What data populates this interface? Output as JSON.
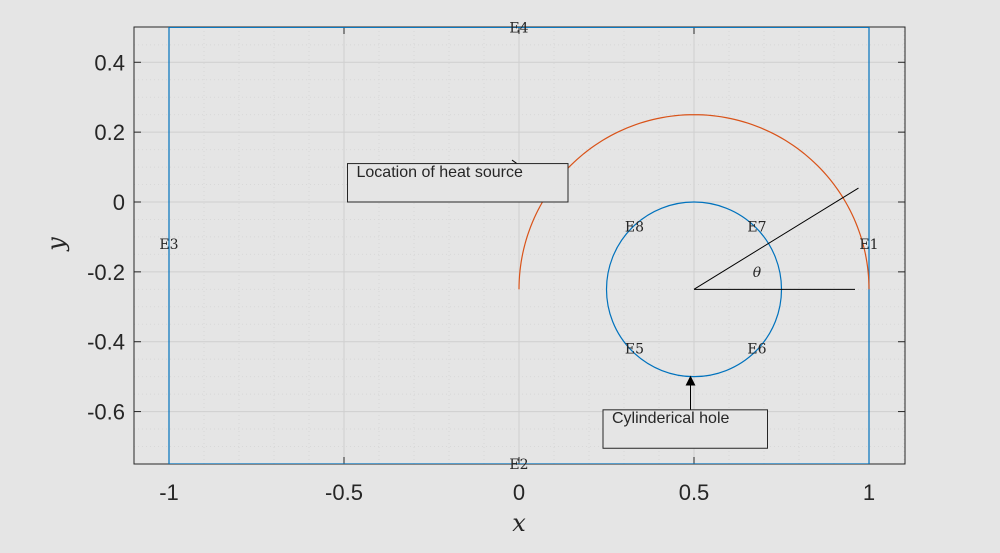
{
  "chart_data": {
    "type": "line",
    "xlabel": "x",
    "ylabel": "y",
    "xlim": [
      -1.1,
      1.1
    ],
    "ylim": [
      -0.75,
      0.5
    ],
    "xticks": [
      -1,
      -0.5,
      0,
      0.5,
      1
    ],
    "xtick_labels": [
      "-1",
      "-0.5",
      "0",
      "0.5",
      "1"
    ],
    "yticks": [
      0.4,
      0.2,
      0,
      -0.2,
      -0.4,
      -0.6
    ],
    "ytick_labels": [
      "0.4",
      "0.2",
      "0",
      "-0.2",
      "-0.4",
      "-0.6"
    ],
    "grid": true,
    "colors": {
      "domain": "#0072BD",
      "source": "#D95319",
      "annotation": "#000000",
      "axes_bg": "#e5e5e5"
    },
    "domain_rectangle": {
      "x": [
        -1,
        1
      ],
      "y": [
        -0.75,
        0.5
      ]
    },
    "hole": {
      "center": [
        0.5,
        -0.25
      ],
      "radius": 0.25
    },
    "heat_source_arc": {
      "center": [
        0.5,
        -0.25
      ],
      "radius": 0.5,
      "theta_start_deg": 0,
      "theta_end_deg": 180
    },
    "theta_lines": [
      {
        "from": [
          0.5,
          -0.25
        ],
        "to": [
          0.96,
          -0.25
        ]
      },
      {
        "from": [
          0.5,
          -0.25
        ],
        "to": [
          0.97,
          0.04
        ]
      }
    ],
    "edge_labels": [
      {
        "text": "E1",
        "x": 1.0,
        "y": -0.12
      },
      {
        "text": "E2",
        "x": 0.0,
        "y": -0.75
      },
      {
        "text": "E3",
        "x": -1.0,
        "y": -0.12
      },
      {
        "text": "E4",
        "x": 0.0,
        "y": 0.5
      },
      {
        "text": "E5",
        "x": 0.33,
        "y": -0.42
      },
      {
        "text": "E6",
        "x": 0.68,
        "y": -0.42
      },
      {
        "text": "E7",
        "x": 0.68,
        "y": -0.07
      },
      {
        "text": "E8",
        "x": 0.33,
        "y": -0.07
      }
    ],
    "theta_label": {
      "text": "θ",
      "x": 0.68,
      "y": -0.2
    },
    "annotations": [
      {
        "text": "Location of heat source",
        "box_x": [
          -0.49,
          0.14
        ],
        "box_y": [
          0.11,
          0.0
        ],
        "arrow_from": [
          -0.02,
          0.12
        ],
        "arrow_to": [
          0.09,
          0.04
        ]
      },
      {
        "text": "Cylinderical hole",
        "box_x": [
          0.24,
          0.71
        ],
        "box_y": [
          -0.595,
          -0.705
        ],
        "arrow_from": [
          0.49,
          -0.595
        ],
        "arrow_to": [
          0.49,
          -0.5
        ]
      }
    ]
  }
}
